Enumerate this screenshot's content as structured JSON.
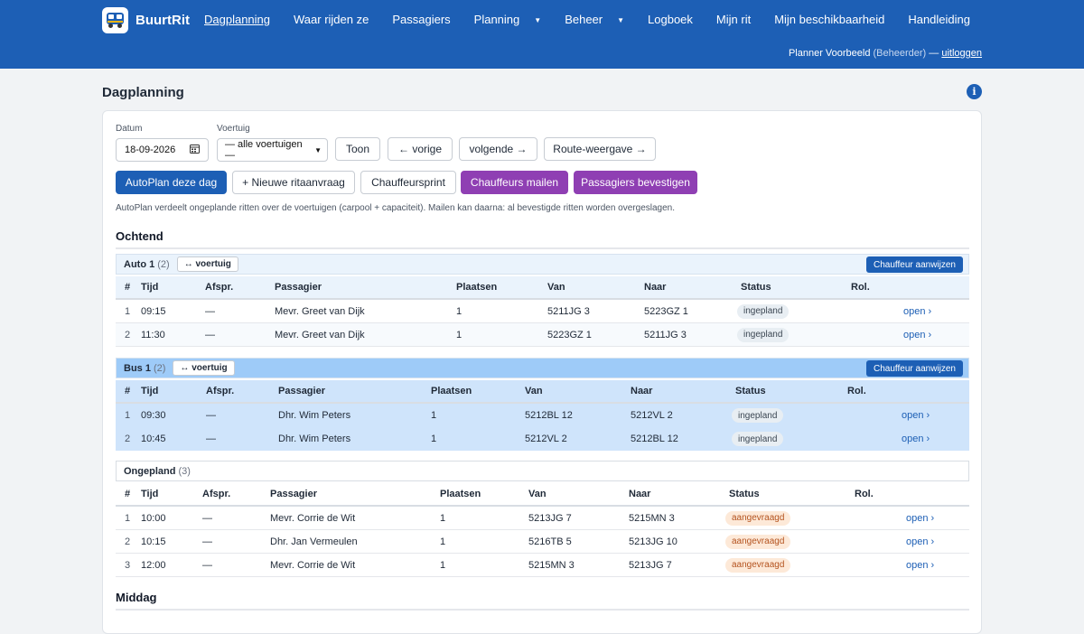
{
  "app": {
    "name": "BuurtRit"
  },
  "nav": [
    {
      "label": "Dagplanning",
      "active": true,
      "caret": false
    },
    {
      "label": "Waar rijden ze",
      "active": false,
      "caret": false
    },
    {
      "label": "Passagiers",
      "active": false,
      "caret": false
    },
    {
      "label": "Planning",
      "active": false,
      "caret": true
    },
    {
      "label": "Beheer",
      "active": false,
      "caret": true
    },
    {
      "label": "Logboek",
      "active": false,
      "caret": false
    },
    {
      "label": "Mijn rit",
      "active": false,
      "caret": false
    },
    {
      "label": "Mijn beschikbaarheid",
      "active": false,
      "caret": false
    },
    {
      "label": "Handleiding",
      "active": false,
      "caret": false
    }
  ],
  "user": {
    "name": "Planner Voorbeeld",
    "role": "(Beheerder)",
    "separator": "—",
    "logout": "uitloggen"
  },
  "page": {
    "title": "Dagplanning",
    "info_icon": "i"
  },
  "filters": {
    "date_label": "Datum",
    "date_value": "18-09-2026",
    "vehicle_label": "Voertuig",
    "vehicle_value": "— alle voertuigen —"
  },
  "buttons": {
    "toon": "Toon",
    "prev": "← vorige",
    "next": "volgende →",
    "route": "Route-weergave →",
    "autoplan": "AutoPlan deze dag",
    "new_request": "+ Nieuwe ritaanvraag",
    "print": "Chauffeursprint",
    "mail_drivers": "Chauffeurs mailen",
    "confirm_passengers": "Passagiers bevestigen"
  },
  "hint": "AutoPlan verdeelt ongeplande ritten over de voertuigen (carpool + capaciteit). Mailen kan daarna: al bevestigde ritten worden overgeslagen.",
  "columns": [
    "#",
    "Tijd",
    "Afspr.",
    "Passagier",
    "Plaatsen",
    "Van",
    "Naar",
    "Status",
    "Rol."
  ],
  "sections": [
    {
      "title": "Ochtend",
      "groups": [
        {
          "name": "Auto 1",
          "count": "(2)",
          "vehicle_btn": "↔ voertuig",
          "assign_btn": "Chauffeur aanwijzen",
          "rows": [
            {
              "n": "1",
              "time": "09:15",
              "appt": "—",
              "passenger": "Mevr. Greet van Dijk",
              "seats": "1",
              "from": "5211JG 3",
              "to": "5223GZ 1",
              "status": "ingepland",
              "action": "open ›"
            },
            {
              "n": "2",
              "time": "11:30",
              "appt": "—",
              "passenger": "Mevr. Greet van Dijk",
              "seats": "1",
              "from": "5223GZ 1",
              "to": "5211JG 3",
              "status": "ingepland",
              "action": "open ›"
            }
          ]
        },
        {
          "name": "Bus 1",
          "count": "(2)",
          "vehicle_btn": "↔ voertuig",
          "assign_btn": "Chauffeur aanwijzen",
          "rows": [
            {
              "n": "1",
              "time": "09:30",
              "appt": "—",
              "passenger": "Dhr. Wim Peters",
              "seats": "1",
              "from": "5212BL 12",
              "to": "5212VL 2",
              "status": "ingepland",
              "action": "open ›"
            },
            {
              "n": "2",
              "time": "10:45",
              "appt": "—",
              "passenger": "Dhr. Wim Peters",
              "seats": "1",
              "from": "5212VL 2",
              "to": "5212BL 12",
              "status": "ingepland",
              "action": "open ›"
            }
          ]
        },
        {
          "name": "Ongepland",
          "count": "(3)",
          "rows": [
            {
              "n": "1",
              "time": "10:00",
              "appt": "—",
              "passenger": "Mevr. Corrie de Wit",
              "seats": "1",
              "from": "5213JG 7",
              "to": "5215MN 3",
              "status": "aangevraagd",
              "action": "open ›"
            },
            {
              "n": "2",
              "time": "10:15",
              "appt": "—",
              "passenger": "Dhr. Jan Vermeulen",
              "seats": "1",
              "from": "5216TB 5",
              "to": "5213JG 10",
              "status": "aangevraagd",
              "action": "open ›"
            },
            {
              "n": "3",
              "time": "12:00",
              "appt": "—",
              "passenger": "Mevr. Corrie de Wit",
              "seats": "1",
              "from": "5215MN 3",
              "to": "5213JG 7",
              "status": "aangevraagd",
              "action": "open ›"
            }
          ]
        }
      ]
    },
    {
      "title": "Middag",
      "groups": []
    }
  ],
  "colors": {
    "brand": "#1d5fb5",
    "purple": "#8f3fb3",
    "bus_row": "#cfe4fb",
    "auto_head": "#eaf3fc"
  }
}
